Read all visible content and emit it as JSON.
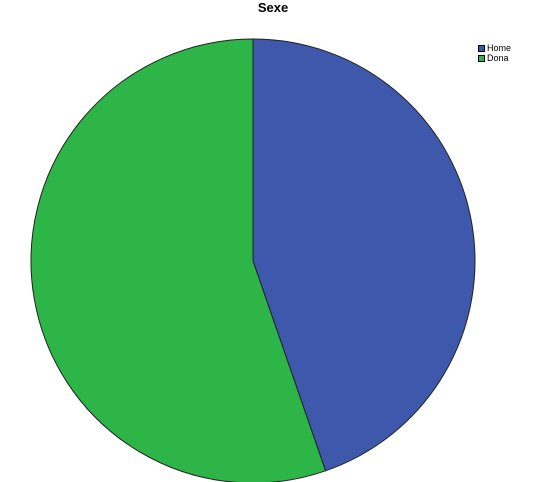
{
  "chart_data": {
    "type": "pie",
    "title": "Sexe",
    "categories": [
      "Home",
      "Dona"
    ],
    "values": [
      44.7,
      55.3
    ],
    "colors": [
      "#3e58ac",
      "#2db548"
    ],
    "start_angle_deg": 0,
    "direction": "clockwise",
    "legend_position": "top-right"
  }
}
